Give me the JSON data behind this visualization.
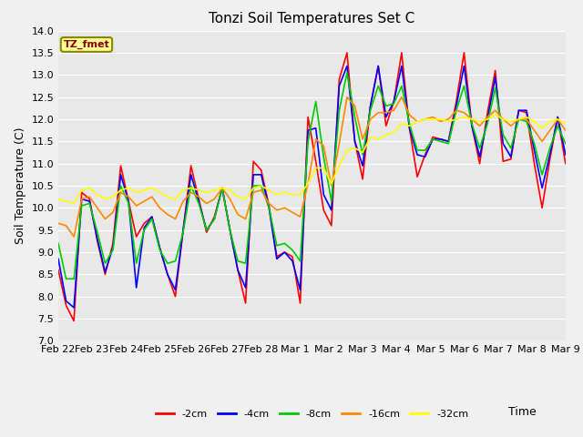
{
  "title": "Tonzi Soil Temperatures Set C",
  "xlabel": "Time",
  "ylabel": "Soil Temperature (C)",
  "ylim": [
    7.0,
    14.0
  ],
  "yticks": [
    7.0,
    7.5,
    8.0,
    8.5,
    9.0,
    9.5,
    10.0,
    10.5,
    11.0,
    11.5,
    12.0,
    12.5,
    13.0,
    13.5,
    14.0
  ],
  "xtick_labels": [
    "Feb 22",
    "Feb 23",
    "Feb 24",
    "Feb 25",
    "Feb 26",
    "Feb 27",
    "Feb 28",
    "Mar 1",
    "Mar 2",
    "Mar 3",
    "Mar 4",
    "Mar 5",
    "Mar 6",
    "Mar 7",
    "Mar 8",
    "Mar 9"
  ],
  "label_box_text": "TZ_fmet",
  "label_box_facecolor": "#ffff99",
  "label_box_edgecolor": "#888800",
  "label_box_textcolor": "#880000",
  "bg_color": "#e8e8e8",
  "grid_color": "#ffffff",
  "title_fontsize": 11,
  "axis_label_fontsize": 9,
  "tick_fontsize": 8,
  "legend_fontsize": 8,
  "series": [
    {
      "label": "-2cm",
      "color": "#ff0000",
      "data": [
        8.6,
        7.8,
        7.45,
        10.35,
        10.2,
        9.25,
        8.5,
        9.2,
        10.95,
        10.15,
        9.35,
        9.65,
        9.8,
        9.1,
        8.5,
        8.0,
        9.5,
        10.95,
        10.2,
        9.45,
        9.8,
        10.45,
        9.5,
        8.6,
        7.85,
        11.05,
        10.85,
        10.05,
        8.9,
        9.0,
        8.9,
        7.85,
        12.05,
        11.05,
        9.95,
        9.6,
        12.9,
        13.5,
        11.5,
        10.65,
        12.3,
        13.2,
        11.85,
        12.4,
        13.5,
        11.8,
        10.7,
        11.2,
        11.6,
        11.55,
        11.5,
        12.4,
        13.5,
        11.85,
        11.0,
        12.15,
        13.1,
        11.05,
        11.1,
        12.2,
        12.15,
        11.0,
        10.0,
        11.1,
        12.05,
        11.0
      ]
    },
    {
      "label": "-4cm",
      "color": "#0000ff",
      "data": [
        8.85,
        7.9,
        7.75,
        10.2,
        10.15,
        9.3,
        8.55,
        9.1,
        10.75,
        10.15,
        8.2,
        9.55,
        9.8,
        9.1,
        8.5,
        8.15,
        9.5,
        10.75,
        10.15,
        9.5,
        9.75,
        10.45,
        9.5,
        8.6,
        8.2,
        10.75,
        10.75,
        10.0,
        8.85,
        9.0,
        8.8,
        8.15,
        11.75,
        11.8,
        10.3,
        9.95,
        12.75,
        13.2,
        11.5,
        10.95,
        12.3,
        13.2,
        12.05,
        12.4,
        13.2,
        11.8,
        11.2,
        11.15,
        11.55,
        11.55,
        11.5,
        12.3,
        13.2,
        11.85,
        11.15,
        12.0,
        12.95,
        11.45,
        11.15,
        12.2,
        12.2,
        11.3,
        10.45,
        11.2,
        12.05,
        11.2
      ]
    },
    {
      "label": "-8cm",
      "color": "#00cc00",
      "data": [
        9.2,
        8.4,
        8.4,
        10.05,
        10.1,
        9.45,
        8.75,
        9.05,
        10.5,
        10.1,
        8.75,
        9.5,
        9.75,
        9.05,
        8.75,
        8.8,
        9.45,
        10.5,
        10.1,
        9.5,
        9.75,
        10.45,
        9.5,
        8.8,
        8.75,
        10.5,
        10.5,
        10.0,
        9.15,
        9.2,
        9.05,
        8.8,
        11.5,
        12.4,
        11.15,
        10.15,
        12.2,
        13.05,
        12.05,
        11.2,
        12.2,
        12.75,
        12.3,
        12.35,
        12.75,
        11.9,
        11.3,
        11.3,
        11.55,
        11.5,
        11.45,
        12.2,
        12.75,
        11.9,
        11.35,
        11.9,
        12.7,
        11.65,
        11.35,
        12.0,
        11.95,
        11.45,
        10.75,
        11.35,
        11.85,
        11.45
      ]
    },
    {
      "label": "-16cm",
      "color": "#ff8800",
      "data": [
        9.65,
        9.6,
        9.35,
        10.2,
        10.25,
        10.0,
        9.75,
        9.9,
        10.35,
        10.25,
        10.05,
        10.15,
        10.25,
        10.0,
        9.85,
        9.75,
        10.15,
        10.35,
        10.25,
        10.1,
        10.2,
        10.45,
        10.2,
        9.85,
        9.75,
        10.35,
        10.4,
        10.1,
        9.95,
        10.0,
        9.9,
        9.8,
        10.55,
        11.55,
        11.4,
        10.5,
        11.45,
        12.5,
        12.3,
        11.55,
        12.0,
        12.15,
        12.15,
        12.2,
        12.5,
        12.1,
        11.95,
        12.0,
        12.05,
        11.95,
        12.0,
        12.2,
        12.15,
        12.0,
        11.85,
        12.05,
        12.2,
        12.0,
        11.85,
        12.0,
        12.0,
        11.75,
        11.5,
        11.75,
        12.0,
        11.75
      ]
    },
    {
      "label": "-32cm",
      "color": "#ffff00",
      "data": [
        10.2,
        10.15,
        10.1,
        10.4,
        10.45,
        10.3,
        10.2,
        10.25,
        10.4,
        10.45,
        10.35,
        10.4,
        10.45,
        10.35,
        10.25,
        10.2,
        10.4,
        10.45,
        10.4,
        10.35,
        10.4,
        10.45,
        10.4,
        10.25,
        10.2,
        10.45,
        10.5,
        10.4,
        10.3,
        10.35,
        10.3,
        10.3,
        10.55,
        10.9,
        10.9,
        10.55,
        10.95,
        11.3,
        11.35,
        11.25,
        11.6,
        11.55,
        11.65,
        11.7,
        11.9,
        11.85,
        11.95,
        12.0,
        12.0,
        12.0,
        11.95,
        12.0,
        12.05,
        12.0,
        11.95,
        12.0,
        12.1,
        12.0,
        11.95,
        12.0,
        12.05,
        11.95,
        11.8,
        11.95,
        12.0,
        11.9
      ]
    }
  ]
}
